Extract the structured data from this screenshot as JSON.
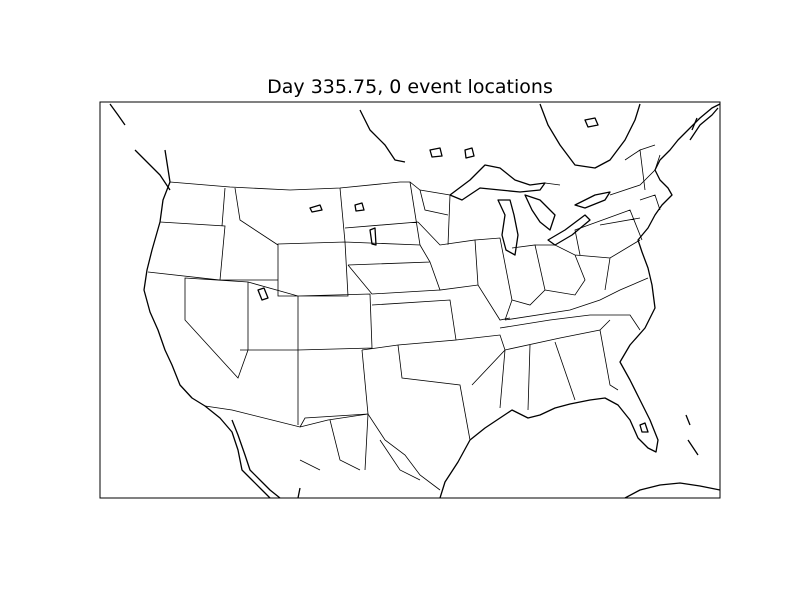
{
  "figure": {
    "title": "Day 335.75, 0 event locations"
  },
  "map_data": {
    "type": "map",
    "region": "North America (contiguous United States, southern Canada, northern Mexico)",
    "layers": [
      "coastlines",
      "country borders",
      "state borders"
    ],
    "event_locations": [],
    "colors": {
      "background": "#ffffff",
      "lines": "#000000"
    }
  }
}
